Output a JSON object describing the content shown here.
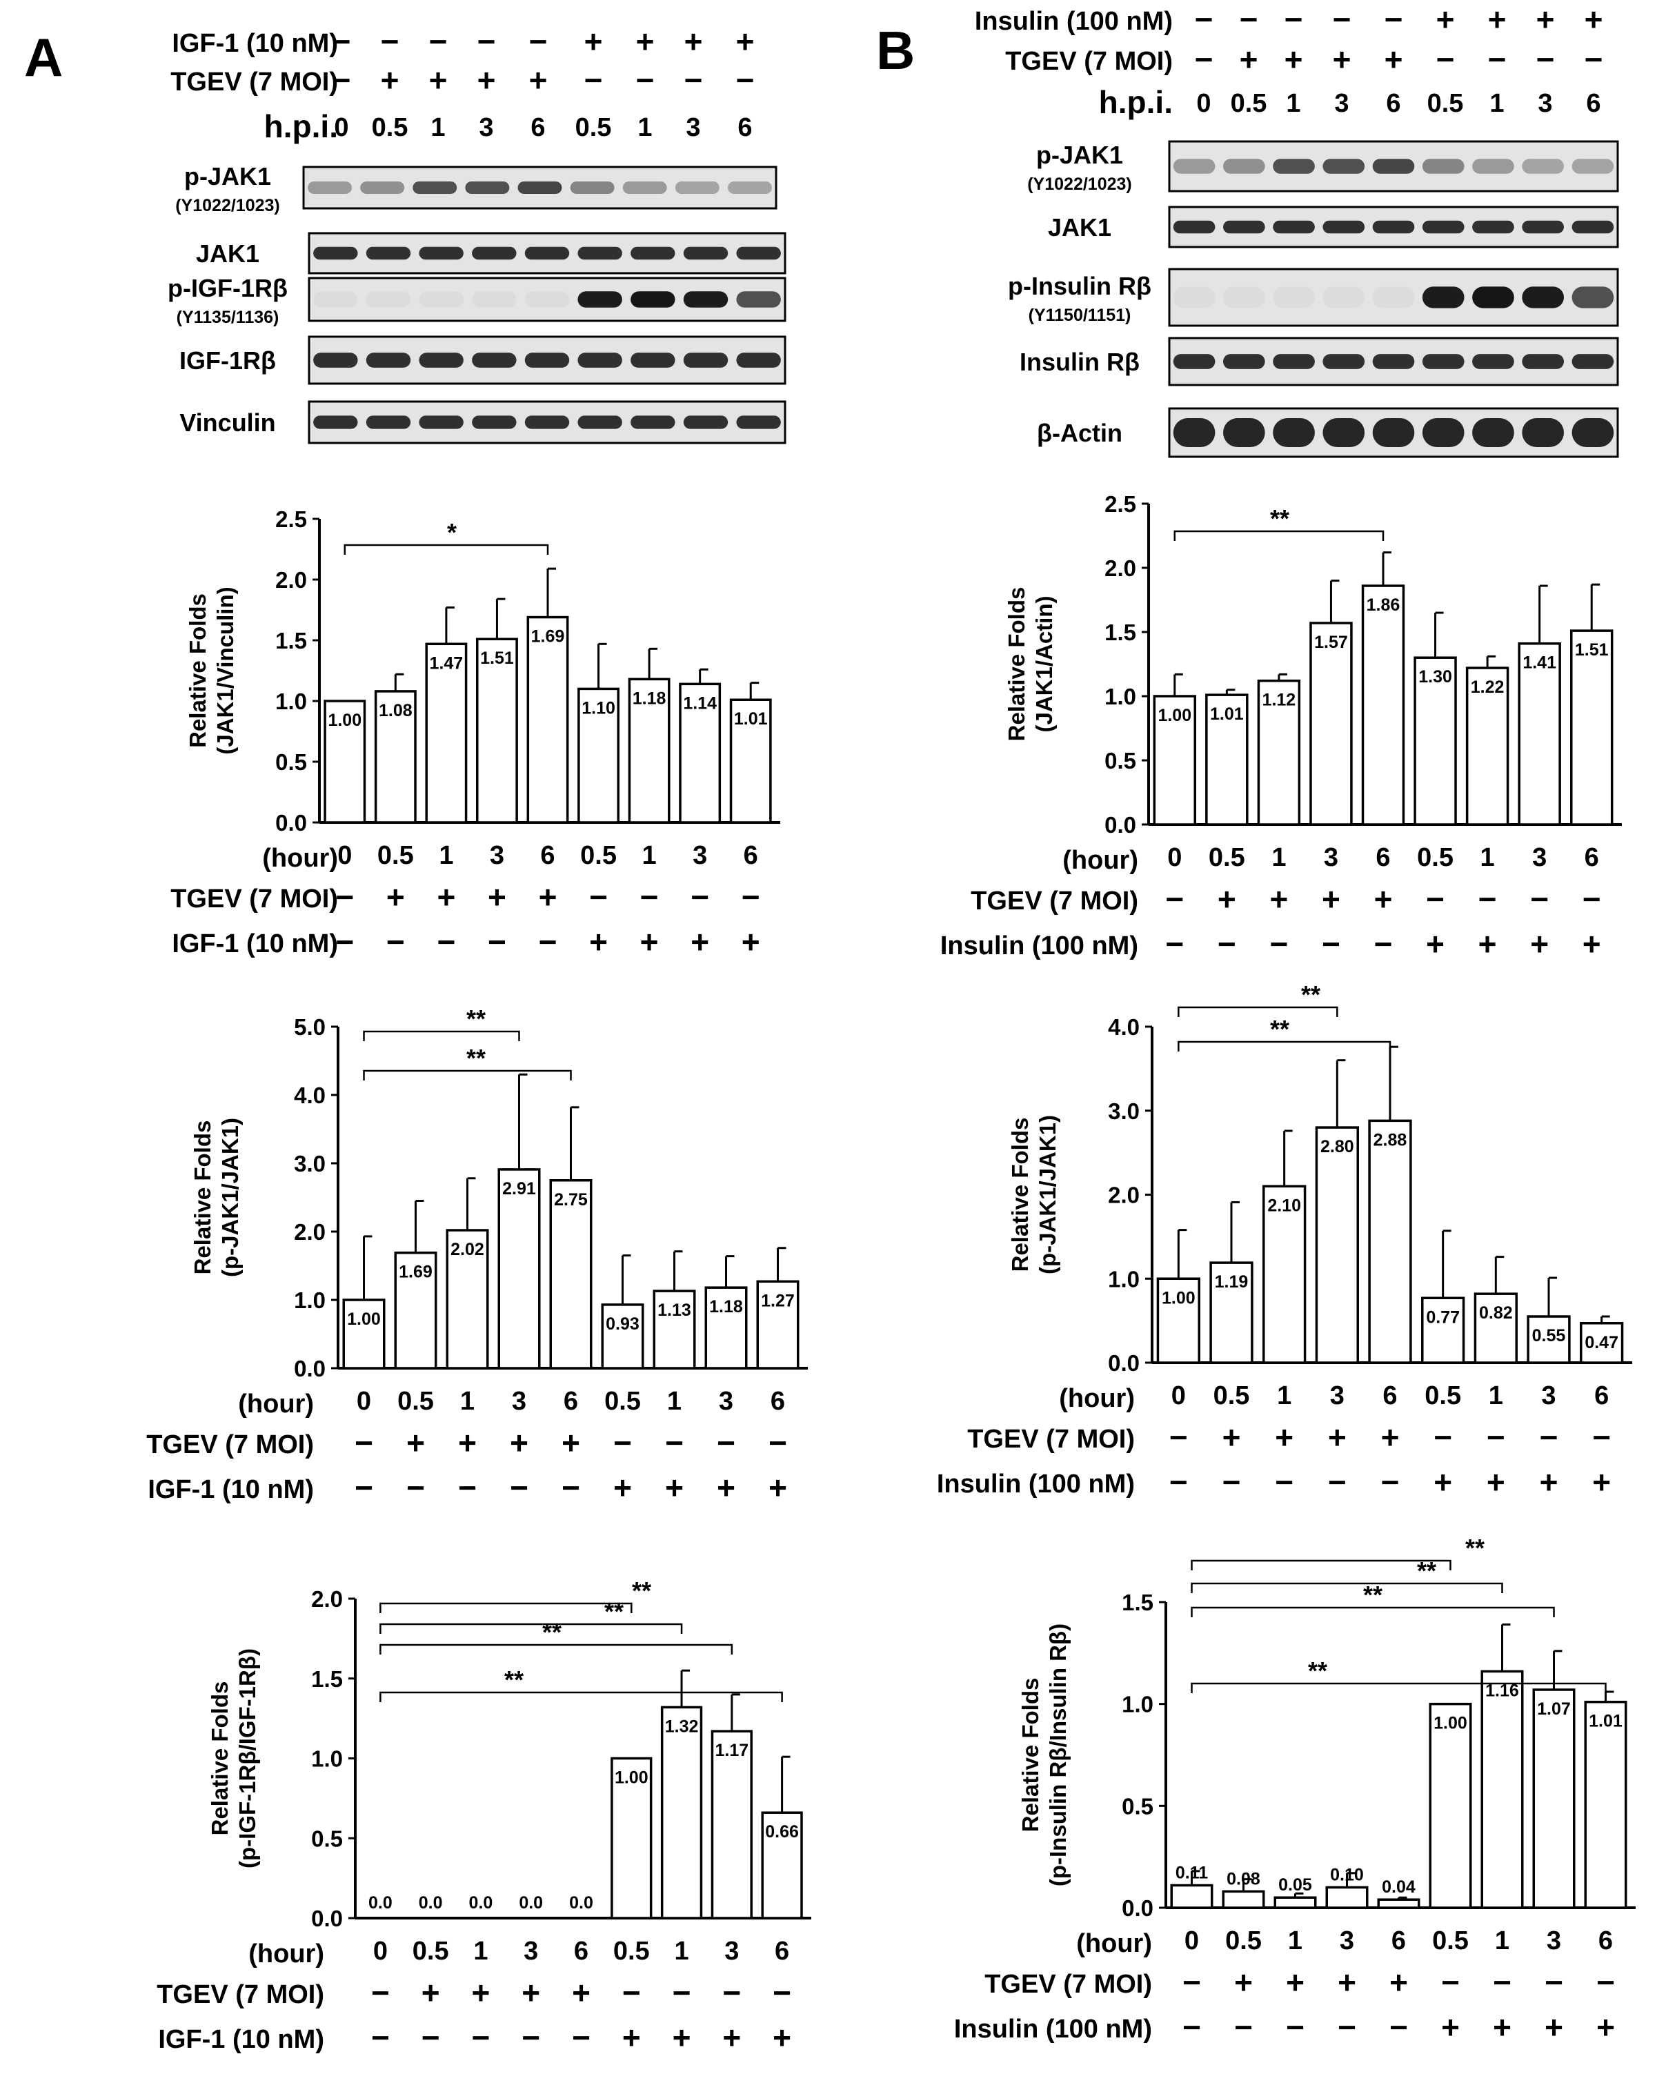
{
  "panels": {
    "A": {
      "label": "A",
      "blot": {
        "header_rows": [
          {
            "label": "IGF-1 (10 nM)",
            "signs": [
              "−",
              "−",
              "−",
              "−",
              "−",
              "+",
              "+",
              "+",
              "+"
            ]
          },
          {
            "label": "TGEV (7 MOI)",
            "signs": [
              "−",
              "+",
              "+",
              "+",
              "+",
              "−",
              "−",
              "−",
              "−"
            ]
          }
        ],
        "hpi_label": "h.p.i.",
        "hpi": [
          "0",
          "0.5",
          "1",
          "3",
          "6",
          "0.5",
          "1",
          "3",
          "6"
        ],
        "bands": [
          {
            "label": "p-JAK1",
            "sublabel": "(Y1022/1023)",
            "pattern": "faint"
          },
          {
            "label": "JAK1",
            "sublabel": "",
            "pattern": "even"
          },
          {
            "label": "p-IGF-1Rβ",
            "sublabel": "(Y1135/1136)",
            "pattern": "right"
          },
          {
            "label": "IGF-1Rβ",
            "sublabel": "",
            "pattern": "even"
          },
          {
            "label": "Vinculin",
            "sublabel": "",
            "pattern": "even"
          }
        ]
      },
      "factor_label": "IGF-1 (10 nM)"
    },
    "B": {
      "label": "B",
      "blot": {
        "header_rows": [
          {
            "label": "Insulin (100 nM)",
            "signs": [
              "−",
              "−",
              "−",
              "−",
              "−",
              "+",
              "+",
              "+",
              "+"
            ]
          },
          {
            "label": "TGEV (7 MOI)",
            "signs": [
              "−",
              "+",
              "+",
              "+",
              "+",
              "−",
              "−",
              "−",
              "−"
            ]
          }
        ],
        "hpi_label": "h.p.i.",
        "hpi": [
          "0",
          "0.5",
          "1",
          "3",
          "6",
          "0.5",
          "1",
          "3",
          "6"
        ],
        "bands": [
          {
            "label": "p-JAK1",
            "sublabel": "(Y1022/1023)",
            "pattern": "faint"
          },
          {
            "label": "JAK1",
            "sublabel": "",
            "pattern": "even"
          },
          {
            "label": "p-Insulin Rβ",
            "sublabel": "(Y1150/1151)",
            "pattern": "right"
          },
          {
            "label": "Insulin Rβ",
            "sublabel": "",
            "pattern": "even"
          },
          {
            "label": "β-Actin",
            "sublabel": "",
            "pattern": "thick"
          }
        ]
      },
      "factor_label": "Insulin (100 nM)"
    }
  },
  "common": {
    "hour_label": "(hour)",
    "hours": [
      "0",
      "0.5",
      "1",
      "3",
      "6",
      "0.5",
      "1",
      "3",
      "6"
    ],
    "tgev_label": "TGEV (7 MOI)",
    "tgev_signs": [
      "−",
      "+",
      "+",
      "+",
      "+",
      "−",
      "−",
      "−",
      "−"
    ],
    "factor_signs": [
      "−",
      "−",
      "−",
      "−",
      "−",
      "+",
      "+",
      "+",
      "+"
    ]
  },
  "chart_data": [
    {
      "id": "A1",
      "type": "bar",
      "ylabel": [
        "Relative Folds",
        "(JAK1/Vinculin)"
      ],
      "ylim": [
        0,
        2.5
      ],
      "ticks": [
        "0.0",
        "0.5",
        "1.0",
        "1.5",
        "2.0",
        "2.5"
      ],
      "values": [
        1.0,
        1.08,
        1.47,
        1.51,
        1.69,
        1.1,
        1.18,
        1.14,
        1.01
      ],
      "errors": [
        0,
        0.14,
        0.3,
        0.33,
        0.4,
        0.37,
        0.25,
        0.12,
        0.14
      ],
      "labels": [
        "1.00",
        "1.08",
        "1.47",
        "1.51",
        "1.69",
        "1.10",
        "1.18",
        "1.14",
        "1.01"
      ],
      "significance": [
        {
          "from": 0,
          "to": 4,
          "mark": "*"
        }
      ]
    },
    {
      "id": "A2",
      "type": "bar",
      "ylabel": [
        "Relative Folds",
        "(p-JAK1/JAK1)"
      ],
      "ylim": [
        0,
        5
      ],
      "ticks": [
        "0.0",
        "1.0",
        "2.0",
        "3.0",
        "4.0",
        "5.0"
      ],
      "values": [
        1.0,
        1.69,
        2.02,
        2.91,
        2.75,
        0.93,
        1.13,
        1.18,
        1.27
      ],
      "errors": [
        0.93,
        0.76,
        0.76,
        1.39,
        1.07,
        0.72,
        0.58,
        0.46,
        0.49
      ],
      "labels": [
        "1.00",
        "1.69",
        "2.02",
        "2.91",
        "2.75",
        "0.93",
        "1.13",
        "1.18",
        "1.27"
      ],
      "significance": [
        {
          "from": 0,
          "to": 3,
          "mark": "**"
        },
        {
          "from": 0,
          "to": 4,
          "mark": "**"
        }
      ]
    },
    {
      "id": "A3",
      "type": "bar",
      "ylabel": [
        "Relative Folds",
        "(p-IGF-1Rβ/IGF-1Rβ)"
      ],
      "ylim": [
        0,
        2
      ],
      "ticks": [
        "0.0",
        "0.5",
        "1.0",
        "1.5",
        "2.0"
      ],
      "values": [
        0,
        0,
        0,
        0,
        0,
        1.0,
        1.32,
        1.17,
        0.66
      ],
      "errors": [
        0,
        0,
        0,
        0,
        0,
        0,
        0.23,
        0.23,
        0.35
      ],
      "labels": [
        "0.0",
        "0.0",
        "0.0",
        "0.0",
        "0.0",
        "1.00",
        "1.32",
        "1.17",
        "0.66"
      ],
      "significance": [
        {
          "from": 0,
          "to": 5,
          "mark": "**"
        },
        {
          "from": 0,
          "to": 6,
          "mark": "**"
        },
        {
          "from": 0,
          "to": 7,
          "mark": "**"
        },
        {
          "from": 0,
          "to": 8,
          "mark": "**"
        }
      ]
    },
    {
      "id": "B1",
      "type": "bar",
      "ylabel": [
        "Relative Folds",
        "(JAK1/Actin)"
      ],
      "ylim": [
        0,
        2.5
      ],
      "ticks": [
        "0.0",
        "0.5",
        "1.0",
        "1.5",
        "2.0",
        "2.5"
      ],
      "values": [
        1.0,
        1.01,
        1.12,
        1.57,
        1.86,
        1.3,
        1.22,
        1.41,
        1.51
      ],
      "errors": [
        0.17,
        0.04,
        0.05,
        0.33,
        0.26,
        0.35,
        0.09,
        0.45,
        0.36
      ],
      "labels": [
        "1.00",
        "1.01",
        "1.12",
        "1.57",
        "1.86",
        "1.30",
        "1.22",
        "1.41",
        "1.51"
      ],
      "significance": [
        {
          "from": 0,
          "to": 4,
          "mark": "**"
        }
      ]
    },
    {
      "id": "B2",
      "type": "bar",
      "ylabel": [
        "Relative Folds",
        "(p-JAK1/JAK1)"
      ],
      "ylim": [
        0,
        4
      ],
      "ticks": [
        "0.0",
        "1.0",
        "2.0",
        "3.0",
        "4.0"
      ],
      "values": [
        1.0,
        1.19,
        2.1,
        2.8,
        2.88,
        0.77,
        0.82,
        0.55,
        0.47
      ],
      "errors": [
        0.58,
        0.72,
        0.66,
        0.8,
        0.88,
        0.8,
        0.44,
        0.46,
        0.08
      ],
      "labels": [
        "1.00",
        "1.19",
        "2.10",
        "2.80",
        "2.88",
        "0.77",
        "0.82",
        "0.55",
        "0.47"
      ],
      "significance": [
        {
          "from": 0,
          "to": 3,
          "mark": "**"
        },
        {
          "from": 0,
          "to": 4,
          "mark": "**"
        }
      ]
    },
    {
      "id": "B3",
      "type": "bar",
      "ylabel": [
        "Relative Folds",
        "(p-Insulin Rβ/Insulin Rβ)"
      ],
      "ylim": [
        0,
        1.5
      ],
      "ticks": [
        "0.0",
        "0.5",
        "1.0",
        "1.5"
      ],
      "values": [
        0.11,
        0.08,
        0.05,
        0.1,
        0.04,
        1.0,
        1.16,
        1.07,
        1.01
      ],
      "errors": [
        0.07,
        0.06,
        0.02,
        0.07,
        0.01,
        0,
        0.23,
        0.19,
        0.05
      ],
      "labels": [
        "0.11",
        "0.08",
        "0.05",
        "0.10",
        "0.04",
        "1.00",
        "1.16",
        "1.07",
        "1.01"
      ],
      "significance": [
        {
          "from": 0,
          "to": 5,
          "mark": "**"
        },
        {
          "from": 0,
          "to": 6,
          "mark": "**"
        },
        {
          "from": 0,
          "to": 7,
          "mark": "**"
        },
        {
          "from": 0,
          "to": 8,
          "mark": "**"
        }
      ]
    }
  ]
}
